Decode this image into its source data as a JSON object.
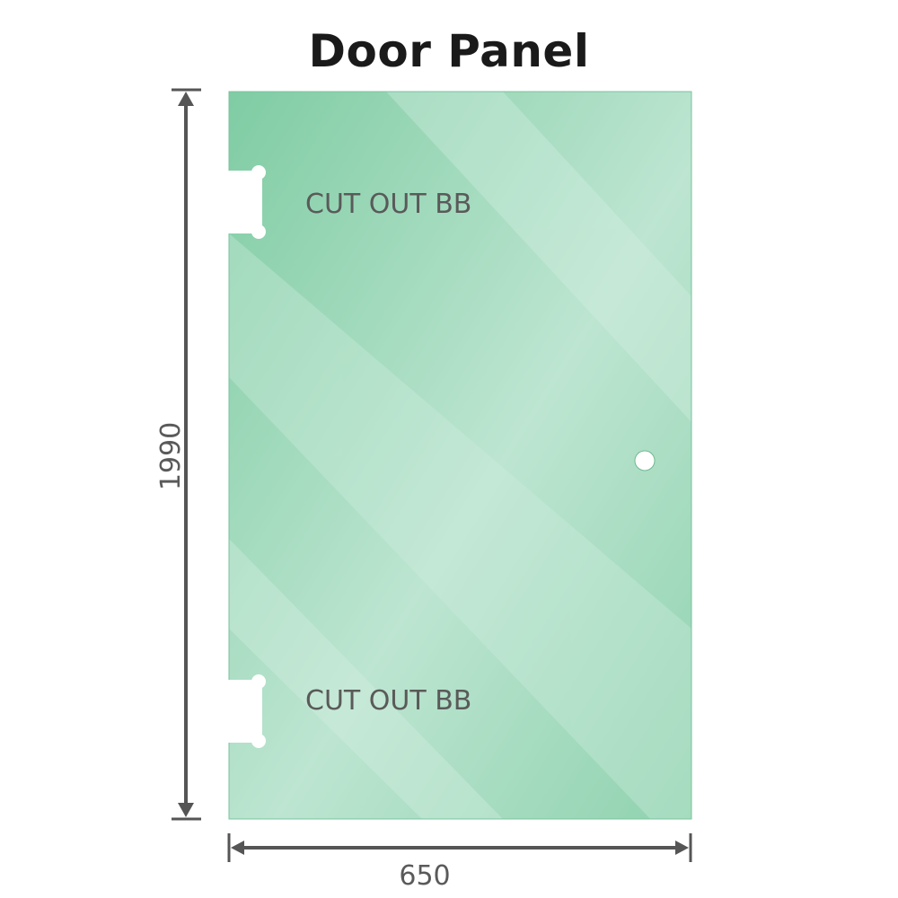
{
  "title": "Door Panel",
  "cutout_top_label": "CUT OUT BB",
  "cutout_bottom_label": "CUT OUT BB",
  "height_dimension": "1990",
  "width_dimension": "650",
  "colors": {
    "glass": "#86cfa9",
    "glass_light": "#bfe6d2",
    "dimension_line": "#555555"
  }
}
